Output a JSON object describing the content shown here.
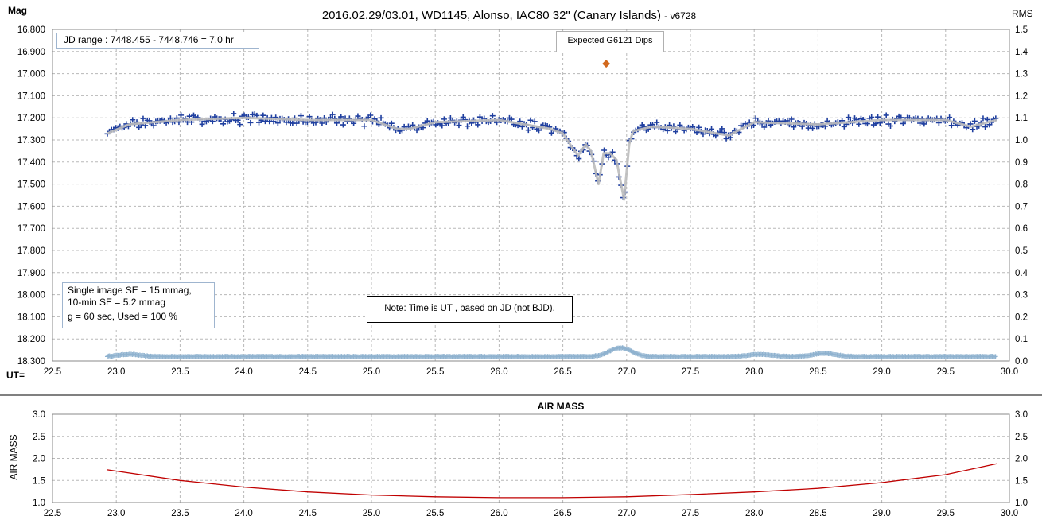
{
  "chart_data": [
    {
      "type": "scatter",
      "title": "2016.02.29/03.01,  WD1145,  Alonso,  IAC80 32\" (Canary Islands)",
      "version": "- v6728",
      "ylabel_left": "Mag",
      "ylabel_right": "RMS",
      "xlabel": "UT=",
      "xlim": [
        22.5,
        30.0
      ],
      "xticks": [
        "22.5",
        "23.0",
        "23.5",
        "24.0",
        "24.5",
        "25.0",
        "25.5",
        "26.0",
        "26.5",
        "27.0",
        "27.5",
        "28.0",
        "28.5",
        "29.0",
        "29.5",
        "30.0"
      ],
      "ylim": [
        16.8,
        18.3
      ],
      "y_inverted": true,
      "yticks": [
        "16.800",
        "16.900",
        "17.000",
        "17.100",
        "17.200",
        "17.300",
        "17.400",
        "17.500",
        "17.600",
        "17.700",
        "17.800",
        "17.900",
        "18.000",
        "18.100",
        "18.200",
        "18.300"
      ],
      "y2lim": [
        0.0,
        1.5
      ],
      "y2ticks": [
        "1.5",
        "1.4",
        "1.3",
        "1.2",
        "1.1",
        "1.0",
        "0.9",
        "0.8",
        "0.7",
        "0.6",
        "0.5",
        "0.4",
        "0.3",
        "0.2",
        "0.1",
        "0.0"
      ],
      "grid": true,
      "annotations": {
        "jd_range": "JD range  : 7448.455 - 7448.746  = 7.0 hr",
        "expected_label": "Expected G6121 Dips",
        "expected_marker": {
          "x": 26.84,
          "y": 16.955
        },
        "se_line1": "Single image SE = 15 mmag,",
        "se_line2": "10-min SE = 5.2 mmag",
        "se_line3": "g = 60 sec, Used = 100  %",
        "note": "Note: Time is UT , based on JD (not BJD)."
      },
      "series": [
        {
          "role": "measurements",
          "marker": "plus",
          "color": "#1f3f9f",
          "x_range": [
            22.93,
            29.9
          ],
          "baseline_mag": 17.22,
          "scatter_mag": 0.02
        },
        {
          "role": "smoothed",
          "line": "solid",
          "color": "#bdbdbd",
          "points": [
            [
              22.93,
              17.27
            ],
            [
              23.1,
              17.23
            ],
            [
              23.5,
              17.21
            ],
            [
              24.0,
              17.2
            ],
            [
              24.5,
              17.21
            ],
            [
              25.0,
              17.21
            ],
            [
              25.2,
              17.25
            ],
            [
              25.3,
              17.25
            ],
            [
              25.5,
              17.22
            ],
            [
              26.0,
              17.21
            ],
            [
              26.2,
              17.23
            ],
            [
              26.4,
              17.25
            ],
            [
              26.5,
              17.27
            ],
            [
              26.58,
              17.34
            ],
            [
              26.62,
              17.37
            ],
            [
              26.68,
              17.32
            ],
            [
              26.72,
              17.35
            ],
            [
              26.78,
              17.5
            ],
            [
              26.82,
              17.36
            ],
            [
              26.87,
              17.36
            ],
            [
              26.92,
              17.39
            ],
            [
              26.98,
              17.57
            ],
            [
              27.02,
              17.32
            ],
            [
              27.05,
              17.26
            ],
            [
              27.2,
              17.24
            ],
            [
              27.5,
              17.25
            ],
            [
              27.8,
              17.28
            ],
            [
              28.0,
              17.22
            ],
            [
              28.5,
              17.23
            ],
            [
              29.0,
              17.21
            ],
            [
              29.5,
              17.21
            ],
            [
              29.7,
              17.24
            ],
            [
              29.9,
              17.21
            ]
          ]
        },
        {
          "role": "rms",
          "marker": "plus",
          "color": "#8fb2cf",
          "axis": "right",
          "x_range": [
            22.93,
            29.9
          ],
          "baseline": 0.02,
          "bumps": [
            [
              23.1,
              0.01
            ],
            [
              26.95,
              0.04
            ],
            [
              28.05,
              0.01
            ],
            [
              28.55,
              0.015
            ]
          ]
        }
      ]
    },
    {
      "type": "line",
      "title": "AIR MASS",
      "ylabel": "AIR MASS",
      "xlim": [
        22.5,
        30.0
      ],
      "xticks": [
        "22.5",
        "23.0",
        "23.5",
        "24.0",
        "24.5",
        "25.0",
        "25.5",
        "26.0",
        "26.5",
        "27.0",
        "27.5",
        "28.0",
        "28.5",
        "29.0",
        "29.5",
        "30.0"
      ],
      "ylim": [
        1.0,
        3.0
      ],
      "yticks": [
        "3.0",
        "2.5",
        "2.0",
        "1.5",
        "1.0"
      ],
      "y2ticks": [
        "3.0",
        "2.5",
        "2.0",
        "1.5",
        "1.0"
      ],
      "grid": true,
      "series": [
        {
          "name": "",
          "color": "#c00000",
          "points": [
            [
              22.93,
              1.74
            ],
            [
              23.5,
              1.5
            ],
            [
              24.0,
              1.35
            ],
            [
              24.5,
              1.24
            ],
            [
              25.0,
              1.17
            ],
            [
              25.5,
              1.13
            ],
            [
              26.0,
              1.11
            ],
            [
              26.5,
              1.11
            ],
            [
              27.0,
              1.13
            ],
            [
              27.5,
              1.18
            ],
            [
              28.0,
              1.24
            ],
            [
              28.5,
              1.32
            ],
            [
              29.0,
              1.45
            ],
            [
              29.5,
              1.63
            ],
            [
              29.9,
              1.88
            ]
          ]
        }
      ]
    }
  ]
}
